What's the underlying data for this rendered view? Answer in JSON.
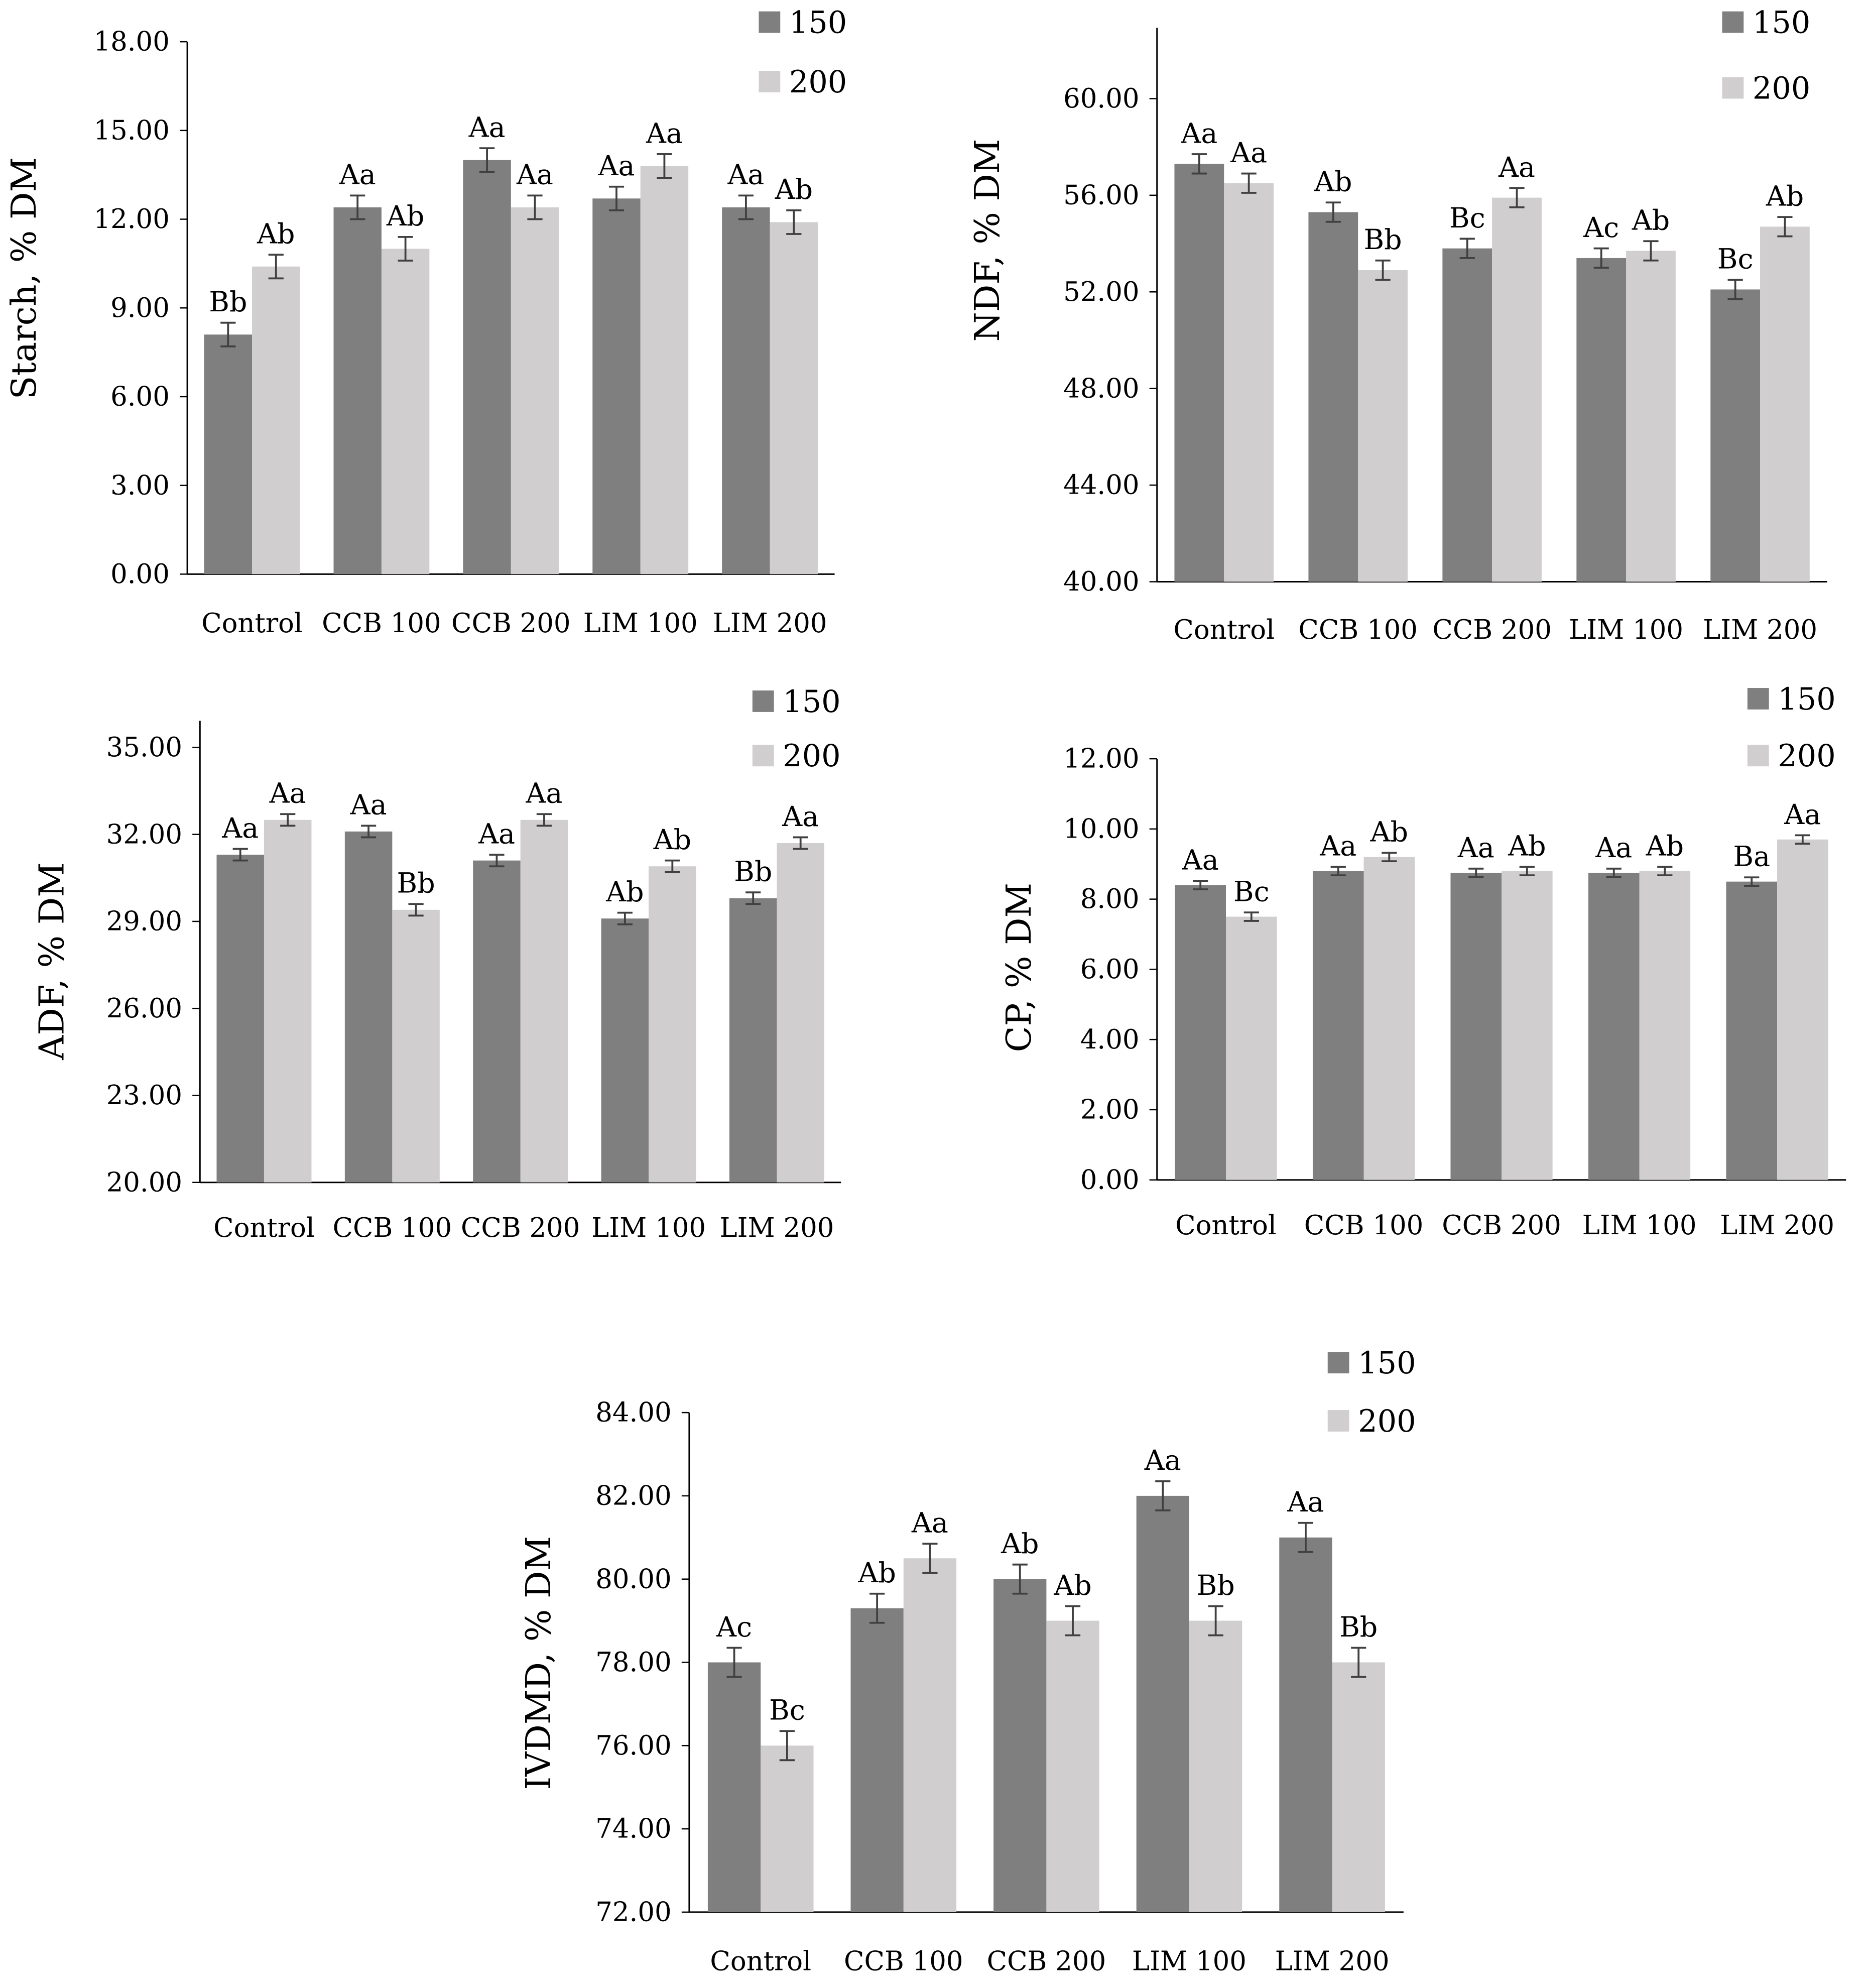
{
  "colors": {
    "series_150": "#7f7f7f",
    "series_200": "#d0cece",
    "error_bar": "#404040"
  },
  "chart_data": [
    {
      "type": "bar",
      "ylabel": "Starch, % DM",
      "ylim": [
        0,
        18
      ],
      "yticks": [
        "0.00",
        "3.00",
        "6.00",
        "9.00",
        "12.00",
        "15.00",
        "18.00"
      ],
      "legend_placement": "top-right",
      "categories": [
        "Control",
        "CCB 100",
        "CCB 200",
        "LIM 100",
        "LIM 200"
      ],
      "series": [
        {
          "name": "150",
          "values": [
            8.1,
            12.4,
            14.0,
            12.7,
            12.4
          ],
          "errors": [
            0.4,
            0.4,
            0.4,
            0.4,
            0.4
          ],
          "labels": [
            "Bb",
            "Aa",
            "Aa",
            "Aa",
            "Aa"
          ]
        },
        {
          "name": "200",
          "values": [
            10.4,
            11.0,
            12.4,
            13.8,
            11.9
          ],
          "errors": [
            0.4,
            0.4,
            0.4,
            0.4,
            0.4
          ],
          "labels": [
            "Ab",
            "Ab",
            "Aa",
            "Aa",
            "Ab"
          ]
        }
      ]
    },
    {
      "type": "bar",
      "ylabel": "NDF, % DM",
      "ylim": [
        40,
        63
      ],
      "yticks": [
        "40.00",
        "44.00",
        "48.00",
        "52.00",
        "56.00",
        "60.00"
      ],
      "legend_placement": "top-right",
      "categories": [
        "Control",
        "CCB 100",
        "CCB 200",
        "LIM 100",
        "LIM 200"
      ],
      "series": [
        {
          "name": "150",
          "values": [
            57.3,
            55.3,
            53.8,
            53.4,
            52.1
          ],
          "errors": [
            0.4,
            0.4,
            0.4,
            0.4,
            0.4
          ],
          "labels": [
            "Aa",
            "Ab",
            "Bc",
            "Ac",
            "Bc"
          ]
        },
        {
          "name": "200",
          "values": [
            56.5,
            52.9,
            55.9,
            53.7,
            54.7
          ],
          "errors": [
            0.4,
            0.4,
            0.4,
            0.4,
            0.4
          ],
          "labels": [
            "Aa",
            "Bb",
            "Aa",
            "Ab",
            "Ab"
          ]
        }
      ]
    },
    {
      "type": "bar",
      "ylabel": "ADF, % DM",
      "ylim": [
        20,
        36
      ],
      "yticks": [
        "20.00",
        "23.00",
        "26.00",
        "29.00",
        "32.00",
        "35.00"
      ],
      "legend_placement": "top-right",
      "categories": [
        "Control",
        "CCB 100",
        "CCB 200",
        "LIM 100",
        "LIM 200"
      ],
      "series": [
        {
          "name": "150",
          "values": [
            31.3,
            32.1,
            31.1,
            29.1,
            29.8
          ],
          "errors": [
            0.2,
            0.2,
            0.2,
            0.2,
            0.2
          ],
          "labels": [
            "Aa",
            "Aa",
            "Aa",
            "Ab",
            "Bb"
          ]
        },
        {
          "name": "200",
          "values": [
            32.5,
            29.4,
            32.5,
            30.9,
            31.7
          ],
          "errors": [
            0.2,
            0.2,
            0.2,
            0.2,
            0.2
          ],
          "labels": [
            "Aa",
            "Bb",
            "Aa",
            "Ab",
            "Aa"
          ]
        }
      ]
    },
    {
      "type": "bar",
      "ylabel": "CP, % DM",
      "ylim": [
        0,
        12
      ],
      "yticks": [
        "0.00",
        "2.00",
        "4.00",
        "6.00",
        "8.00",
        "10.00",
        "12.00"
      ],
      "legend_placement": "top-right",
      "categories": [
        "Control",
        "CCB 100",
        "CCB 200",
        "LIM 100",
        "LIM 200"
      ],
      "series": [
        {
          "name": "150",
          "values": [
            8.4,
            8.8,
            8.75,
            8.75,
            8.5
          ],
          "errors": [
            0.12,
            0.12,
            0.12,
            0.12,
            0.12
          ],
          "labels": [
            "Aa",
            "Aa",
            "Aa",
            "Aa",
            "Ba"
          ]
        },
        {
          "name": "200",
          "values": [
            7.5,
            9.2,
            8.8,
            8.8,
            9.7
          ],
          "errors": [
            0.12,
            0.12,
            0.12,
            0.12,
            0.12
          ],
          "labels": [
            "Bc",
            "Ab",
            "Ab",
            "Ab",
            "Aa"
          ]
        }
      ]
    },
    {
      "type": "bar",
      "ylabel": "IVDMD, % DM",
      "ylim": [
        72,
        84
      ],
      "yticks": [
        "72.00",
        "74.00",
        "76.00",
        "78.00",
        "80.00",
        "82.00",
        "84.00"
      ],
      "legend_placement": "top-right",
      "categories": [
        "Control",
        "CCB 100",
        "CCB 200",
        "LIM 100",
        "LIM 200"
      ],
      "series": [
        {
          "name": "150",
          "values": [
            78.0,
            79.3,
            80.0,
            82.0,
            81.0
          ],
          "errors": [
            0.35,
            0.35,
            0.35,
            0.35,
            0.35
          ],
          "labels": [
            "Ac",
            "Ab",
            "Ab",
            "Aa",
            "Aa"
          ]
        },
        {
          "name": "200",
          "values": [
            76.0,
            80.5,
            79.0,
            79.0,
            78.0
          ],
          "errors": [
            0.35,
            0.35,
            0.35,
            0.35,
            0.35
          ],
          "labels": [
            "Bc",
            "Aa",
            "Ab",
            "Bb",
            "Bb"
          ]
        }
      ]
    }
  ]
}
